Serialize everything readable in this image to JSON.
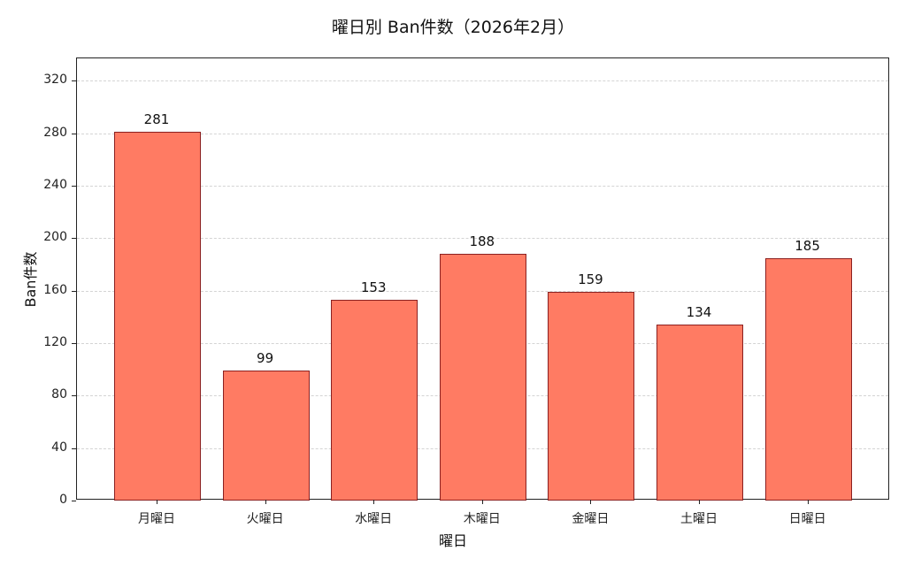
{
  "chart_data": {
    "type": "bar",
    "title": "曜日別 Ban件数（2026年2月）",
    "xlabel": "曜日",
    "ylabel": "Ban件数",
    "categories": [
      "月曜日",
      "火曜日",
      "水曜日",
      "木曜日",
      "金曜日",
      "土曜日",
      "日曜日"
    ],
    "values": [
      281,
      99,
      153,
      188,
      159,
      134,
      185
    ],
    "data_labels": [
      "281",
      "99",
      "153",
      "188",
      "159",
      "134",
      "185"
    ],
    "yticks": [
      0,
      40,
      80,
      120,
      160,
      200,
      240,
      280,
      320
    ],
    "ylim": [
      0,
      337
    ],
    "grid": {
      "axis": "y",
      "style": "dashed"
    },
    "legend": null,
    "colors": {
      "bar_fill": "#ff7b63",
      "bar_edge": "#8b2020",
      "grid": "#d4d4d4"
    }
  }
}
